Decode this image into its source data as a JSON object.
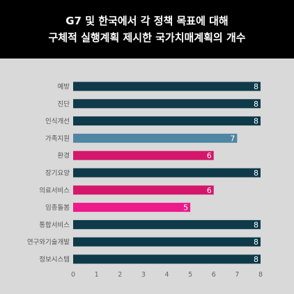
{
  "title_lines": [
    "G7 및 한국에서 각 정책 목표에 대해",
    "구체적 실행계획 제시한 국가치매계획의 개수"
  ],
  "colors": {
    "background": "#d9d9d9",
    "header": "#000000",
    "dark": "#0e3a4a",
    "steel": "#4f86a3",
    "magenta": "#d4176a",
    "pink": "#ec1a8a"
  },
  "chart_data": {
    "type": "bar",
    "orientation": "horizontal",
    "title": "G7 및 한국에서 각 정책 목표에 대해 구체적 실행계획 제시한 국가치매계획의 개수",
    "xlabel": "",
    "ylabel": "",
    "xlim": [
      0,
      8
    ],
    "xticks": [
      0,
      1,
      2,
      3,
      4,
      5,
      6,
      7,
      8
    ],
    "grid": false,
    "categories": [
      "예방",
      "진단",
      "인식개선",
      "가족지원",
      "환경",
      "장기요양",
      "의료서비스",
      "임종돌봄",
      "통합서비스",
      "연구와기술개발",
      "정보시스템"
    ],
    "values": [
      8,
      8,
      8,
      7,
      6,
      8,
      6,
      5,
      8,
      8,
      8
    ],
    "bar_colors": [
      "dark",
      "dark",
      "dark",
      "steel",
      "magenta",
      "dark",
      "magenta",
      "pink",
      "dark",
      "dark",
      "dark"
    ],
    "value_labels": [
      "8",
      "8",
      "8",
      "7",
      "6",
      "8",
      "6",
      "5",
      "8",
      "8",
      "8"
    ]
  }
}
